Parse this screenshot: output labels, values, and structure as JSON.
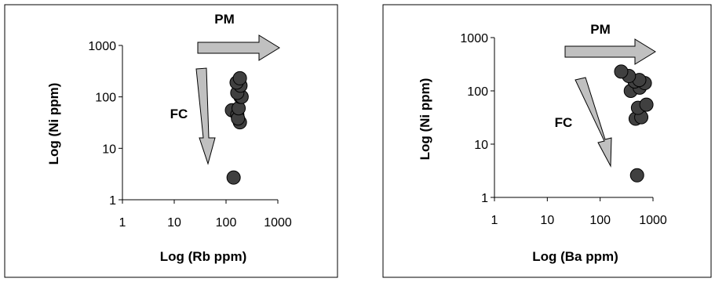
{
  "chart_data": [
    {
      "type": "scatter",
      "xlabel": "Log (Rb ppm)",
      "ylabel": "Log (Ni ppm)",
      "xscale": "log",
      "yscale": "log",
      "xlim": [
        1,
        1000
      ],
      "ylim": [
        1,
        1000
      ],
      "xticks": [
        "1",
        "10",
        "100",
        "1000"
      ],
      "yticks": [
        "1",
        "10",
        "100",
        "1000"
      ],
      "grid": false,
      "marker_color": "#404040",
      "points": [
        {
          "x": 140,
          "y": 2.7
        },
        {
          "x": 130,
          "y": 55
        },
        {
          "x": 165,
          "y": 45
        },
        {
          "x": 185,
          "y": 32
        },
        {
          "x": 170,
          "y": 38
        },
        {
          "x": 175,
          "y": 60
        },
        {
          "x": 190,
          "y": 100
        },
        {
          "x": 200,
          "y": 100
        },
        {
          "x": 165,
          "y": 120
        },
        {
          "x": 190,
          "y": 165
        },
        {
          "x": 160,
          "y": 190
        },
        {
          "x": 185,
          "y": 230
        }
      ],
      "annotations": [
        {
          "label": "PM",
          "direction": "right"
        },
        {
          "label": "FC",
          "direction": "down"
        }
      ]
    },
    {
      "type": "scatter",
      "xlabel": "Log (Ba ppm)",
      "ylabel": "Log (Ni ppm)",
      "xscale": "log",
      "yscale": "log",
      "xlim": [
        1,
        1000
      ],
      "ylim": [
        1,
        1000
      ],
      "xticks": [
        "1",
        "10",
        "100",
        "1000"
      ],
      "yticks": [
        "1",
        "10",
        "100",
        "1000"
      ],
      "grid": false,
      "marker_color": "#404040",
      "points": [
        {
          "x": 500,
          "y": 2.6
        },
        {
          "x": 470,
          "y": 30
        },
        {
          "x": 600,
          "y": 32
        },
        {
          "x": 520,
          "y": 48
        },
        {
          "x": 750,
          "y": 55
        },
        {
          "x": 380,
          "y": 100
        },
        {
          "x": 560,
          "y": 115
        },
        {
          "x": 700,
          "y": 140
        },
        {
          "x": 450,
          "y": 150
        },
        {
          "x": 550,
          "y": 160
        },
        {
          "x": 350,
          "y": 190
        },
        {
          "x": 250,
          "y": 230
        }
      ],
      "annotations": [
        {
          "label": "PM",
          "direction": "right"
        },
        {
          "label": "FC",
          "direction": "down"
        }
      ]
    }
  ]
}
